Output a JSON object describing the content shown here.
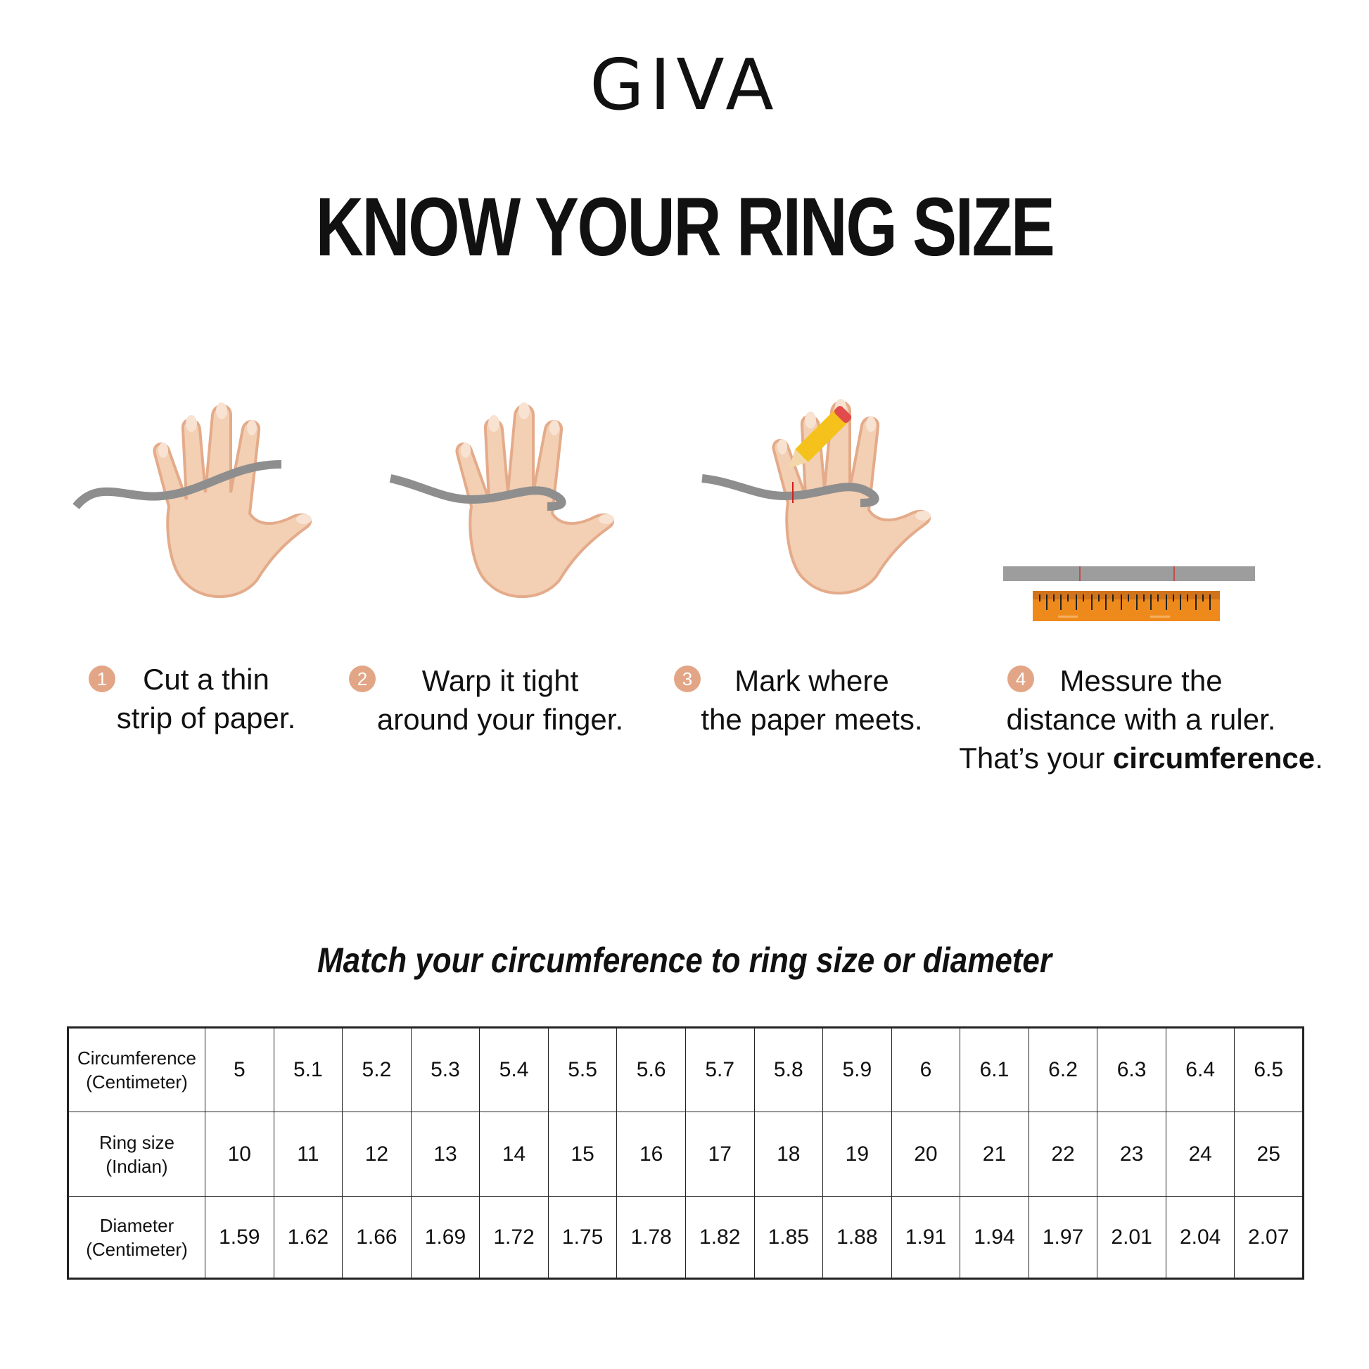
{
  "brand": {
    "logo": "GIVA"
  },
  "headline": "KNOW YOUR RING SIZE",
  "colors": {
    "skin": "#f3cfb3",
    "skin_shade": "#e4ab8a",
    "paper_strip": "#8e8e8e",
    "ruler": "#ee8a1c",
    "step_badge": "#e2a686"
  },
  "steps": [
    {
      "number": "1",
      "line1": "Cut a thin",
      "line2": "strip of paper.",
      "icon": "hand-with-paper-strip-icon"
    },
    {
      "number": "2",
      "line1": "Warp it tight",
      "line2": "around your finger.",
      "icon": "hand-wrapping-finger-icon"
    },
    {
      "number": "3",
      "line1": "Mark where",
      "line2": "the paper meets.",
      "icon": "hand-marking-pencil-icon"
    },
    {
      "number": "4",
      "line1": "Messure the",
      "line2": "distance with a ruler.",
      "line3_prefix": "That’s your ",
      "line3_bold": "circumference",
      "line3_suffix": ".",
      "icon": "ruler-icon"
    }
  ],
  "table_title": "Match your circumference to ring size or diameter",
  "table": {
    "rows": [
      {
        "label1": "Circumference",
        "label2": "(Centimeter)",
        "values": [
          "5",
          "5.1",
          "5.2",
          "5.3",
          "5.4",
          "5.5",
          "5.6",
          "5.7",
          "5.8",
          "5.9",
          "6",
          "6.1",
          "6.2",
          "6.3",
          "6.4",
          "6.5"
        ]
      },
      {
        "label1": "Ring size",
        "label2": "(Indian)",
        "values": [
          "10",
          "11",
          "12",
          "13",
          "14",
          "15",
          "16",
          "17",
          "18",
          "19",
          "20",
          "21",
          "22",
          "23",
          "24",
          "25"
        ]
      },
      {
        "label1": "Diameter",
        "label2": "(Centimeter)",
        "values": [
          "1.59",
          "1.62",
          "1.66",
          "1.69",
          "1.72",
          "1.75",
          "1.78",
          "1.82",
          "1.85",
          "1.88",
          "1.91",
          "1.94",
          "1.97",
          "2.01",
          "2.04",
          "2.07"
        ]
      }
    ]
  }
}
